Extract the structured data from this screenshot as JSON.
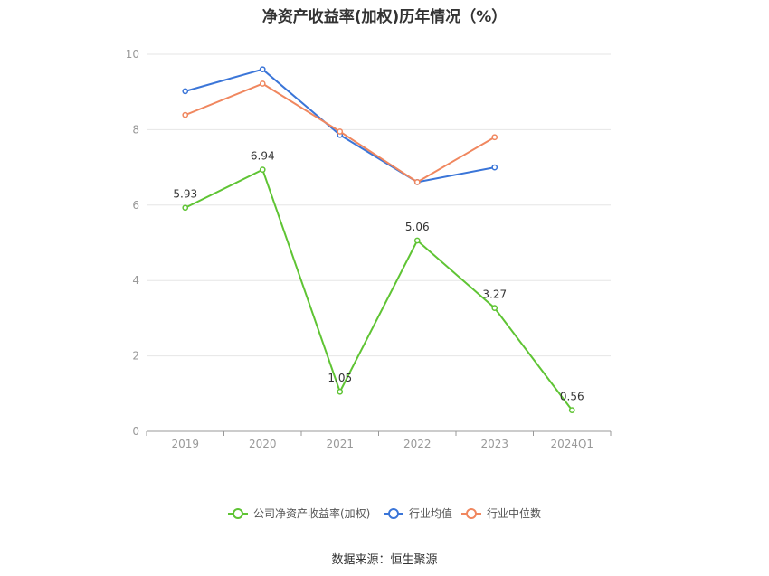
{
  "title": "净资产收益率(加权)历年情况（%）",
  "source": "数据来源：恒生聚源",
  "chart_data": {
    "type": "line",
    "x": [
      "2019",
      "2020",
      "2021",
      "2022",
      "2023",
      "2024Q1"
    ],
    "ylim": [
      0,
      10
    ],
    "yticks": [
      0,
      2,
      4,
      6,
      8,
      10
    ],
    "grid": true,
    "legend_position": "bottom",
    "series": [
      {
        "name": "公司净资产收益率(加权)",
        "color": "#5fc434",
        "values": [
          5.93,
          6.94,
          1.05,
          5.06,
          3.27,
          0.56
        ],
        "labels": [
          "5.93",
          "6.94",
          "1.05",
          "5.06",
          "3.27",
          "0.56"
        ]
      },
      {
        "name": "行业均值",
        "color": "#3a75d8",
        "values": [
          9.02,
          9.6,
          7.86,
          6.61,
          7.0,
          null
        ]
      },
      {
        "name": "行业中位数",
        "color": "#f0875f",
        "values": [
          8.39,
          9.22,
          7.95,
          6.61,
          7.8,
          null
        ]
      }
    ]
  }
}
